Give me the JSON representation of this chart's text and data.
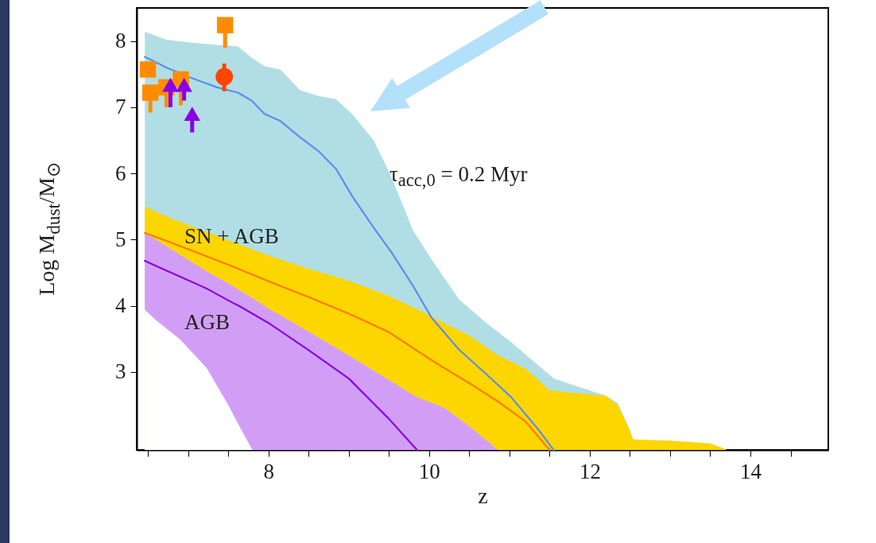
{
  "chart_data": {
    "type": "line",
    "xlabel": "z",
    "ylabel": "Log M$_{dust}$/M$_{⊙}$",
    "xlim": [
      6.36,
      14.97
    ],
    "ylim": [
      1.82,
      8.5
    ],
    "xticks": [
      {
        "value": 6.5,
        "label": null
      },
      {
        "value": 7,
        "label": null
      },
      {
        "value": 7.5,
        "label": null
      },
      8,
      {
        "value": 8.5,
        "label": null
      },
      {
        "value": 9,
        "label": null
      },
      {
        "value": 9.5,
        "label": null
      },
      10,
      {
        "value": 10.5,
        "label": null
      },
      {
        "value": 11,
        "label": null
      },
      {
        "value": 11.5,
        "label": null
      },
      12,
      {
        "value": 12.5,
        "label": null
      },
      {
        "value": 13,
        "label": null
      },
      {
        "value": 13.5,
        "label": null
      },
      14,
      {
        "value": 14.5,
        "label": null
      }
    ],
    "yticks": [
      3,
      4,
      5,
      6,
      7,
      8
    ],
    "series": [
      {
        "type": "area",
        "color": "#b1dee4",
        "x": [
          6.46,
          6.6,
          6.73,
          7.0,
          7.36,
          7.62,
          7.79,
          7.95,
          8.15,
          8.39,
          8.62,
          8.84,
          9.04,
          9.31,
          9.53,
          9.8,
          10.03,
          10.37,
          10.7,
          11.02,
          11.36,
          11.55,
          11.8,
          12.18,
          12.35,
          12.48,
          12.54
        ],
        "values": [
          8.14,
          8.08,
          8.02,
          7.98,
          7.94,
          7.92,
          7.75,
          7.62,
          7.57,
          7.26,
          7.17,
          7.12,
          6.9,
          6.5,
          5.95,
          5.14,
          4.7,
          4.1,
          3.75,
          3.45,
          3.1,
          2.9,
          2.8,
          2.65,
          2.53,
          2.17,
          1.98
        ]
      },
      {
        "type": "area",
        "color": "#fdd600",
        "x": [
          6.46,
          6.73,
          7.5,
          8.0,
          8.5,
          9.0,
          9.5,
          10.0,
          10.2,
          10.5,
          10.86,
          11.2,
          11.5,
          11.9,
          12.2,
          12.35,
          12.48,
          12.54,
          13.0,
          13.5,
          13.7
        ],
        "values": [
          5.5,
          5.35,
          4.99,
          4.76,
          4.56,
          4.38,
          4.15,
          3.86,
          3.73,
          3.55,
          3.25,
          3.05,
          2.72,
          2.67,
          2.64,
          2.5,
          2.17,
          1.98,
          1.96,
          1.92,
          1.83
        ]
      },
      {
        "color": "#8a00e6",
        "x": [
          6.46,
          6.6,
          6.9,
          7.23,
          7.5,
          7.66,
          7.8,
          8.0,
          8.5,
          9.0,
          9.5,
          9.85,
          10.0,
          10.2,
          10.5,
          10.86
        ],
        "values": [
          4.68,
          4.6,
          4.44,
          4.26,
          4.08,
          3.98,
          3.88,
          3.74,
          3.33,
          2.9,
          2.29,
          1.82,
          null,
          null,
          null,
          null
        ],
        "upper": [
          5.1,
          5.0,
          4.77,
          4.52,
          4.34,
          4.22,
          4.12,
          3.96,
          3.61,
          3.25,
          2.88,
          2.62,
          2.55,
          2.45,
          2.18,
          1.82
        ],
        "lower": [
          3.94,
          3.78,
          3.49,
          3.06,
          2.5,
          2.13,
          1.82,
          1.82,
          1.82,
          1.82,
          1.82,
          1.82,
          1.82,
          1.82,
          1.82,
          1.82
        ]
      },
      {
        "color": "#ff7a00",
        "x": [
          6.46,
          6.73,
          7.5,
          8.0,
          8.5,
          9.0,
          9.5,
          10.0,
          10.2,
          10.5,
          10.86,
          11.2,
          11.5
        ],
        "values": [
          5.1,
          4.98,
          4.62,
          4.37,
          4.13,
          3.88,
          3.6,
          3.2,
          3.05,
          2.83,
          2.55,
          2.25,
          1.82
        ]
      },
      {
        "color": "#5b8def",
        "x": [
          6.46,
          6.6,
          6.73,
          7.0,
          7.36,
          7.62,
          7.79,
          7.95,
          8.15,
          8.39,
          8.62,
          8.84,
          9.04,
          9.31,
          9.53,
          9.8,
          10.03,
          10.37,
          10.7,
          11.02,
          11.36,
          11.55
        ],
        "values": [
          7.76,
          7.68,
          7.6,
          7.46,
          7.3,
          7.22,
          7.1,
          6.9,
          6.79,
          6.55,
          6.34,
          6.07,
          5.66,
          5.18,
          4.81,
          4.3,
          3.82,
          3.34,
          2.98,
          2.62,
          2.13,
          1.82
        ]
      },
      {
        "type": "scatter",
        "marker": "square",
        "color": "#ff8c00",
        "x": [
          6.5,
          6.53,
          6.73,
          6.91,
          7.46
        ],
        "values": [
          7.57,
          7.22,
          7.3,
          7.42,
          8.24
        ],
        "errors": [
          null,
          [
            6.92,
            7.22
          ],
          [
            7.0,
            7.3
          ],
          [
            7.03,
            7.42
          ],
          [
            7.9,
            8.24
          ]
        ]
      },
      {
        "type": "scatter",
        "marker": "circle",
        "color": "#ff4500",
        "x": [
          7.45
        ],
        "values": [
          7.46
        ],
        "errors": [
          [
            7.24,
            7.66
          ]
        ]
      },
      {
        "type": "scatter",
        "marker": "triangle",
        "color": "#8a00e6",
        "x": [
          6.78,
          6.95,
          7.05
        ],
        "values": [
          7.34,
          7.34,
          6.9
        ],
        "errors": [
          [
            7.0,
            7.34
          ],
          [
            7.1,
            7.34
          ],
          [
            6.62,
            6.9
          ]
        ]
      }
    ],
    "annotations": [
      "τ$_{acc,0}$ = 0.2 Myr",
      "SN + AGB",
      "AGB"
    ]
  }
}
